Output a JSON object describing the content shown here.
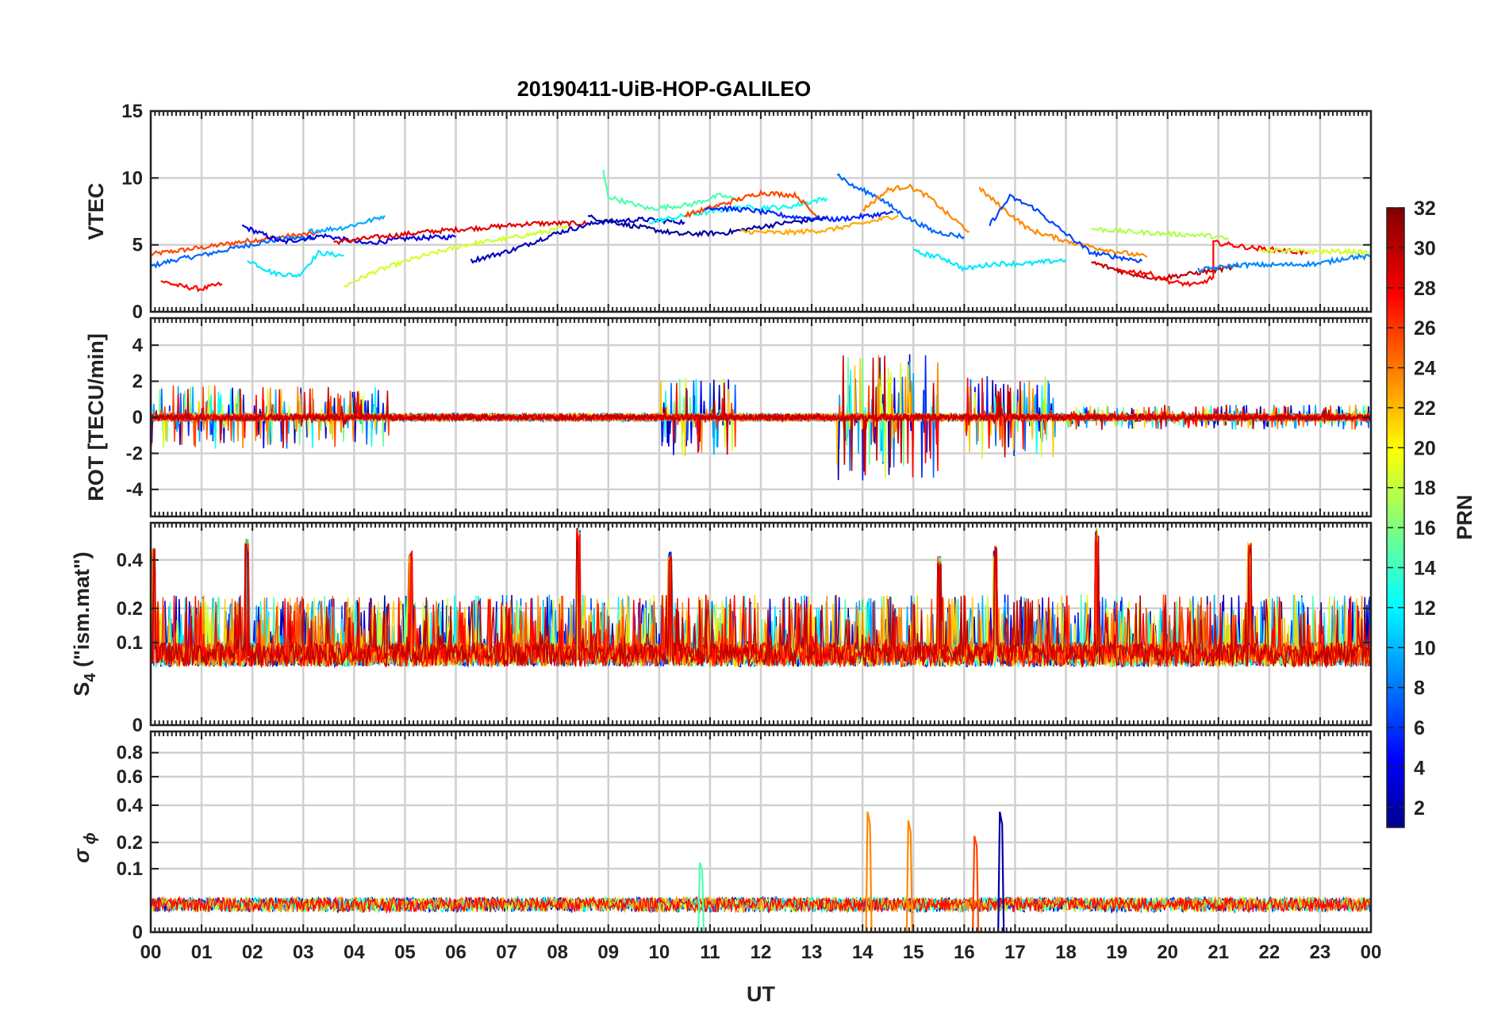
{
  "chart_data": {
    "type": "line",
    "title": "20190411-UiB-HOP-GALILEO",
    "xlabel": "UT",
    "x_range_hours": [
      0,
      24
    ],
    "x_tick_labels": [
      "00",
      "01",
      "02",
      "03",
      "04",
      "05",
      "06",
      "07",
      "08",
      "09",
      "10",
      "11",
      "12",
      "13",
      "14",
      "15",
      "16",
      "17",
      "18",
      "19",
      "20",
      "21",
      "22",
      "23",
      "00"
    ],
    "grid": true,
    "colorbar": {
      "label": "PRN",
      "range": [
        1,
        32
      ],
      "tick_labels": [
        "2",
        "4",
        "6",
        "8",
        "10",
        "12",
        "14",
        "16",
        "18",
        "20",
        "22",
        "24",
        "26",
        "28",
        "30",
        "32"
      ],
      "colormap": "jet"
    },
    "panels": [
      {
        "id": "vtec",
        "ylabel": "VTEC",
        "ylim": [
          0,
          15
        ],
        "y_tick_labels": [
          "0",
          "5",
          "10",
          "15"
        ],
        "series_by_prn": [
          {
            "prn": 26,
            "points": [
              [
                0,
                4.3
              ],
              [
                0.6,
                4.6
              ],
              [
                1.2,
                4.9
              ],
              [
                1.9,
                5.3
              ],
              [
                2.6,
                5.6
              ],
              [
                3.3,
                5.9
              ]
            ]
          },
          {
            "prn": 8,
            "points": [
              [
                0,
                3.4
              ],
              [
                0.5,
                3.9
              ],
              [
                1.1,
                4.3
              ],
              [
                1.8,
                4.9
              ],
              [
                2.5,
                5.4
              ],
              [
                3.2,
                5.6
              ]
            ]
          },
          {
            "prn": 28,
            "points": [
              [
                0.2,
                2.3
              ],
              [
                0.6,
                1.9
              ],
              [
                1.0,
                1.7
              ],
              [
                1.4,
                2.1
              ]
            ]
          },
          {
            "prn": 4,
            "points": [
              [
                1.8,
                6.4
              ],
              [
                2.6,
                5.2
              ],
              [
                3.4,
                5.7
              ],
              [
                4.2,
                5.1
              ],
              [
                5.1,
                5.5
              ],
              [
                6.0,
                5.6
              ]
            ]
          },
          {
            "prn": 12,
            "points": [
              [
                1.9,
                3.9
              ],
              [
                2.4,
                2.9
              ],
              [
                2.9,
                2.7
              ],
              [
                3.3,
                4.4
              ],
              [
                3.8,
                4.2
              ]
            ]
          },
          {
            "prn": 29,
            "points": [
              [
                3.6,
                5.2
              ],
              [
                4.5,
                5.6
              ],
              [
                5.5,
                6.0
              ],
              [
                6.6,
                6.3
              ],
              [
                7.5,
                6.6
              ],
              [
                8.6,
                6.6
              ]
            ]
          },
          {
            "prn": 19,
            "points": [
              [
                3.8,
                1.9
              ],
              [
                4.4,
                3.0
              ],
              [
                5.2,
                4.0
              ],
              [
                6.2,
                5.0
              ],
              [
                7.2,
                5.6
              ],
              [
                8.2,
                6.3
              ]
            ]
          },
          {
            "prn": 10,
            "points": [
              [
                3.1,
                6.0
              ],
              [
                3.8,
                6.3
              ],
              [
                4.4,
                6.9
              ],
              [
                4.6,
                7.2
              ]
            ]
          },
          {
            "prn": 3,
            "points": [
              [
                6.3,
                3.8
              ],
              [
                7.1,
                4.6
              ],
              [
                8.0,
                5.9
              ],
              [
                8.8,
                6.7
              ],
              [
                9.7,
                6.9
              ],
              [
                10.5,
                6.7
              ]
            ]
          },
          {
            "prn": 2,
            "points": [
              [
                8.6,
                7.1
              ],
              [
                9.5,
                6.4
              ],
              [
                10.4,
                5.8
              ],
              [
                11.3,
                5.9
              ],
              [
                12.4,
                6.6
              ],
              [
                13.3,
                7.0
              ]
            ]
          },
          {
            "prn": 15,
            "points": [
              [
                8.9,
                10.5
              ],
              [
                9.0,
                8.6
              ],
              [
                9.8,
                7.7
              ],
              [
                10.6,
                8.0
              ],
              [
                11.2,
                8.7
              ],
              [
                11.5,
                8.4
              ]
            ]
          },
          {
            "prn": 13,
            "points": [
              [
                9.8,
                6.7
              ],
              [
                10.7,
                7.3
              ],
              [
                11.6,
                7.8
              ],
              [
                12.5,
                7.8
              ],
              [
                13.3,
                8.5
              ]
            ]
          },
          {
            "prn": 26,
            "points": [
              [
                10.5,
                7.2
              ],
              [
                11.3,
                8.1
              ],
              [
                12.0,
                8.9
              ],
              [
                12.7,
                8.7
              ],
              [
                13.1,
                7.1
              ]
            ]
          },
          {
            "prn": 6,
            "points": [
              [
                10.9,
                7.8
              ],
              [
                11.8,
                7.6
              ],
              [
                12.6,
                7.1
              ],
              [
                13.5,
                6.9
              ],
              [
                14.6,
                7.4
              ]
            ]
          },
          {
            "prn": 23,
            "points": [
              [
                11.6,
                6.0
              ],
              [
                12.4,
                5.9
              ],
              [
                13.3,
                6.1
              ],
              [
                14.0,
                6.6
              ],
              [
                14.7,
                7.2
              ]
            ]
          },
          {
            "prn": 8,
            "points": [
              [
                13.5,
                10.3
              ],
              [
                13.8,
                9.4
              ],
              [
                14.3,
                8.6
              ],
              [
                14.8,
                7.2
              ],
              [
                15.4,
                6.0
              ],
              [
                16.0,
                5.6
              ]
            ]
          },
          {
            "prn": 24,
            "points": [
              [
                14.0,
                7.6
              ],
              [
                14.5,
                9.1
              ],
              [
                14.9,
                9.4
              ],
              [
                15.3,
                8.6
              ],
              [
                15.7,
                7.2
              ],
              [
                16.1,
                6.0
              ]
            ]
          },
          {
            "prn": 12,
            "points": [
              [
                15.0,
                4.5
              ],
              [
                15.6,
                4.0
              ],
              [
                16.0,
                3.2
              ],
              [
                16.6,
                3.6
              ],
              [
                17.3,
                3.6
              ],
              [
                18.0,
                3.9
              ]
            ]
          },
          {
            "prn": 24,
            "points": [
              [
                16.3,
                9.2
              ],
              [
                16.8,
                7.6
              ],
              [
                17.3,
                6.1
              ],
              [
                18.0,
                5.3
              ],
              [
                18.7,
                4.7
              ],
              [
                19.6,
                4.1
              ]
            ]
          },
          {
            "prn": 7,
            "points": [
              [
                16.5,
                6.5
              ],
              [
                16.9,
                8.6
              ],
              [
                17.4,
                7.7
              ],
              [
                17.8,
                6.4
              ],
              [
                18.5,
                4.4
              ],
              [
                19.5,
                3.8
              ]
            ]
          },
          {
            "prn": 18,
            "points": [
              [
                18.5,
                6.2
              ],
              [
                19.2,
                6.0
              ],
              [
                20.1,
                5.8
              ],
              [
                20.8,
                5.7
              ],
              [
                21.2,
                5.4
              ]
            ]
          },
          {
            "prn": 30,
            "points": [
              [
                18.5,
                3.7
              ],
              [
                19.2,
                2.9
              ],
              [
                19.8,
                2.5
              ],
              [
                20.4,
                2.8
              ],
              [
                20.9,
                3.1
              ],
              [
                21.4,
                3.4
              ]
            ]
          },
          {
            "prn": 28,
            "points": [
              [
                19.0,
                3.1
              ],
              [
                19.6,
                2.9
              ],
              [
                20.1,
                2.2
              ],
              [
                20.6,
                2.0
              ],
              [
                20.9,
                2.6
              ],
              [
                20.9,
                5.2
              ],
              [
                21.6,
                4.8
              ],
              [
                22.2,
                4.6
              ],
              [
                22.8,
                4.4
              ]
            ]
          },
          {
            "prn": 9,
            "points": [
              [
                20.6,
                3.1
              ],
              [
                21.4,
                3.5
              ],
              [
                22.2,
                3.5
              ],
              [
                23.0,
                3.6
              ],
              [
                23.6,
                4.1
              ],
              [
                24.0,
                4.1
              ]
            ]
          },
          {
            "prn": 19,
            "points": [
              [
                21.8,
                4.6
              ],
              [
                22.8,
                4.5
              ],
              [
                23.6,
                4.5
              ],
              [
                24.0,
                4.4
              ]
            ]
          }
        ]
      },
      {
        "id": "rot",
        "ylabel": "ROT [TECU/min]",
        "ylim": [
          -5.5,
          5.5
        ],
        "y_tick_labels": [
          "-4",
          "-2",
          "0",
          "2",
          "4"
        ],
        "envelope_by_ut": [
          {
            "ut_range": [
              0,
              3
            ],
            "abs_max": 1.8
          },
          {
            "ut_range": [
              3,
              4.7
            ],
            "abs_max": 1.7
          },
          {
            "ut_range": [
              10,
              11.5
            ],
            "abs_max": 2.2
          },
          {
            "ut_range": [
              13.5,
              15.5
            ],
            "abs_max": 3.5
          },
          {
            "ut_range": [
              16,
              17.8
            ],
            "abs_max": 2.3
          },
          {
            "ut_range": [
              18,
              24
            ],
            "abs_max": 0.7
          }
        ]
      },
      {
        "id": "s4",
        "ylabel": "S4 (\"ism.mat\")",
        "ylim": [
          0,
          0.6
        ],
        "y_tick_labels": [
          "0",
          "0.1",
          "0.2",
          "0.4"
        ],
        "peaks_by_ut": [
          {
            "ut": 0.05,
            "value": 0.46
          },
          {
            "ut": 1.9,
            "value": 0.51
          },
          {
            "ut": 5.1,
            "value": 0.45
          },
          {
            "ut": 8.4,
            "value": 0.58
          },
          {
            "ut": 10.2,
            "value": 0.44
          },
          {
            "ut": 15.5,
            "value": 0.43
          },
          {
            "ut": 16.6,
            "value": 0.47
          },
          {
            "ut": 18.6,
            "value": 0.57
          },
          {
            "ut": 21.6,
            "value": 0.49
          }
        ],
        "baseline": 0.05
      },
      {
        "id": "sigma_phi",
        "ylabel": "σ ϕ",
        "ylim": [
          0,
          1
        ],
        "y_tick_labels": [
          "0",
          "0.1",
          "0.2",
          "0.4",
          "0.6",
          "0.8"
        ],
        "peaks_by_ut": [
          {
            "ut": 14.1,
            "value": 0.36
          },
          {
            "ut": 14.9,
            "value": 0.31
          },
          {
            "ut": 16.2,
            "value": 0.23
          },
          {
            "ut": 16.7,
            "value": 0.36
          },
          {
            "ut": 10.8,
            "value": 0.12
          }
        ],
        "baseline": 0.02
      }
    ]
  }
}
